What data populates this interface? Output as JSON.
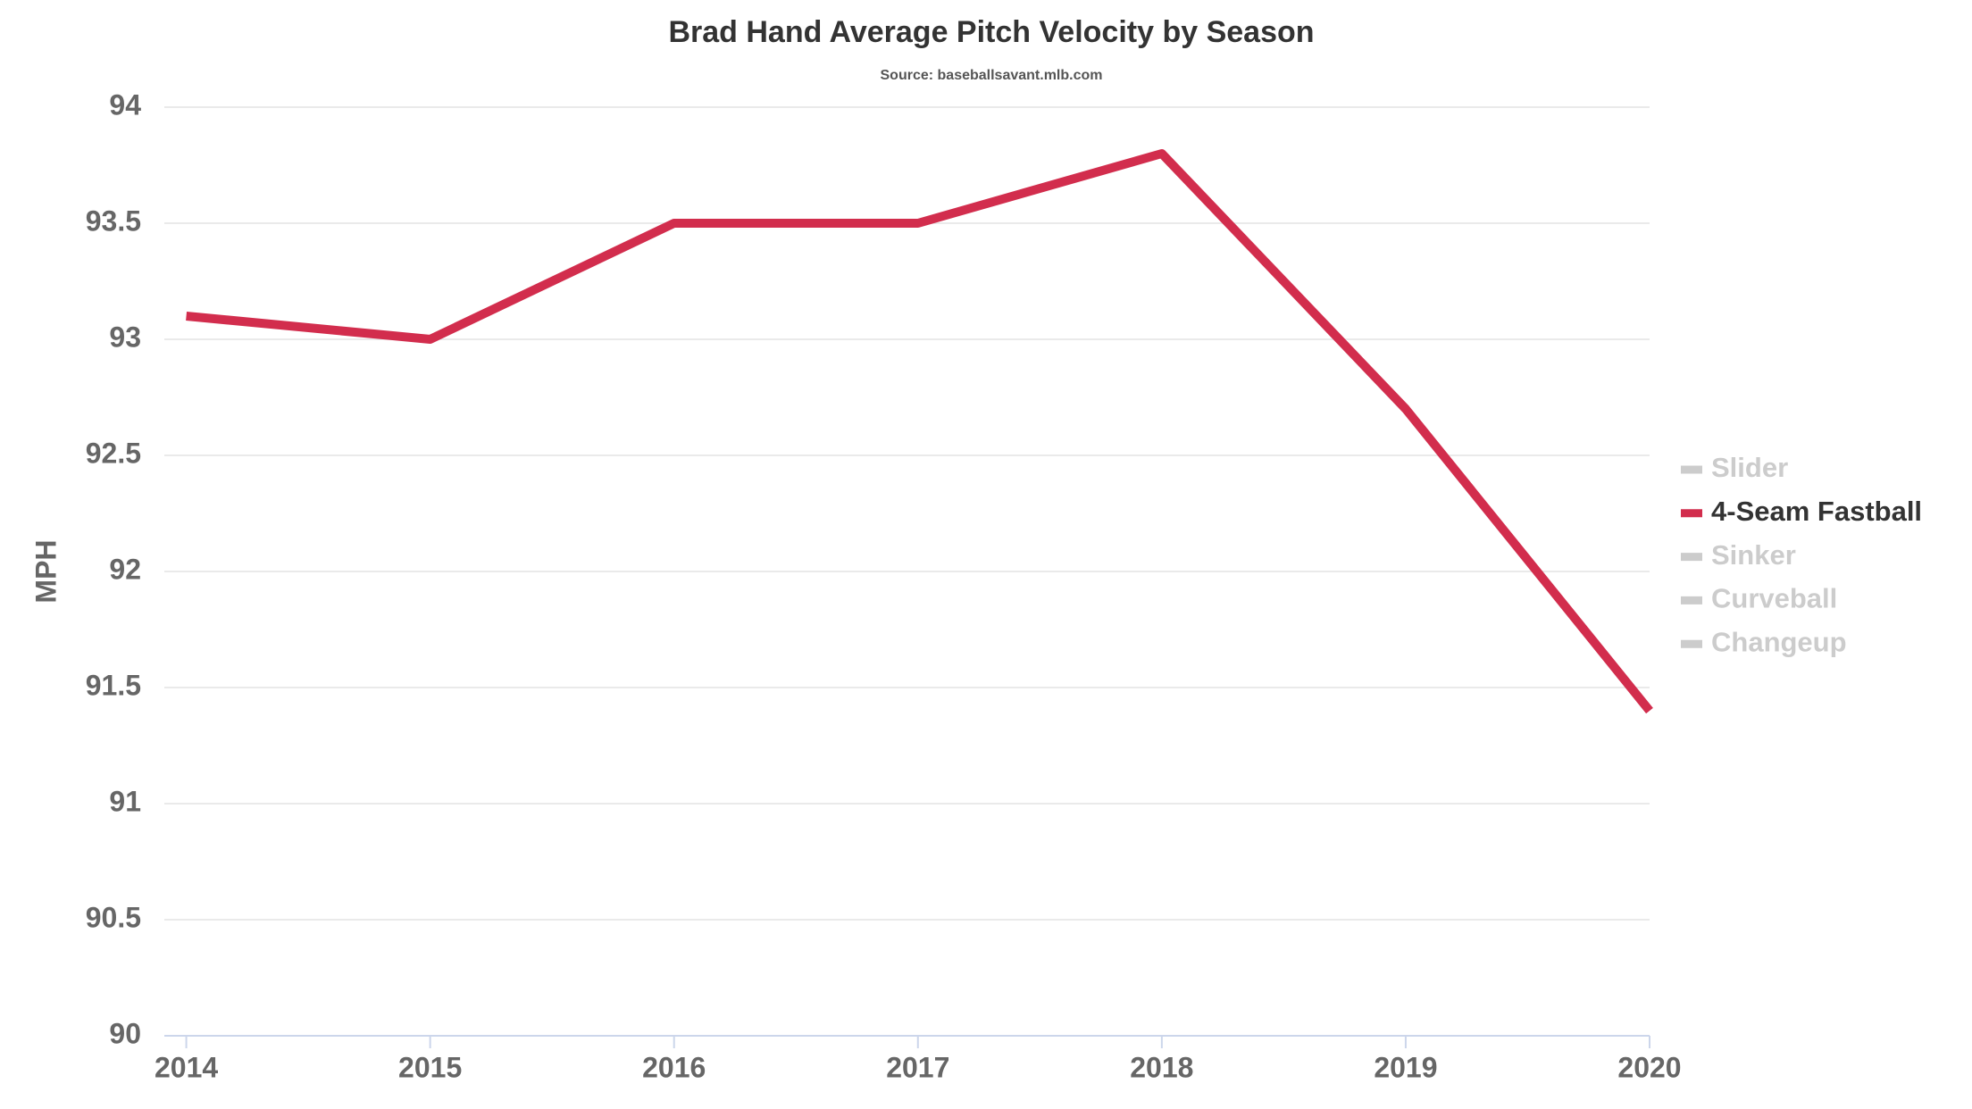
{
  "chart_data": {
    "type": "line",
    "title": "Brad Hand Average Pitch Velocity by Season",
    "subtitle": "Source: baseballsavant.mlb.com",
    "y_label": "MPH",
    "x": [
      2014,
      2015,
      2016,
      2017,
      2018,
      2019,
      2020
    ],
    "xlim": [
      2013.91,
      2020
    ],
    "xticks": [
      2014,
      2015,
      2016,
      2017,
      2018,
      2019,
      2020
    ],
    "ylim": [
      90,
      94
    ],
    "yticks": [
      90,
      90.5,
      91,
      91.5,
      92,
      92.5,
      93,
      93.5,
      94
    ],
    "grid": true,
    "legend": "right",
    "series": [
      {
        "name": "Slider",
        "color": "#cccccc",
        "hidden": true
      },
      {
        "name": "4-Seam Fastball",
        "color": "#d22d4d",
        "values": [
          93.1,
          93.0,
          93.5,
          93.5,
          93.8,
          92.7,
          91.4
        ]
      },
      {
        "name": "Sinker",
        "color": "#cccccc",
        "hidden": true
      },
      {
        "name": "Curveball",
        "color": "#cccccc",
        "hidden": true
      },
      {
        "name": "Changeup",
        "color": "#cccccc",
        "hidden": true
      }
    ]
  }
}
